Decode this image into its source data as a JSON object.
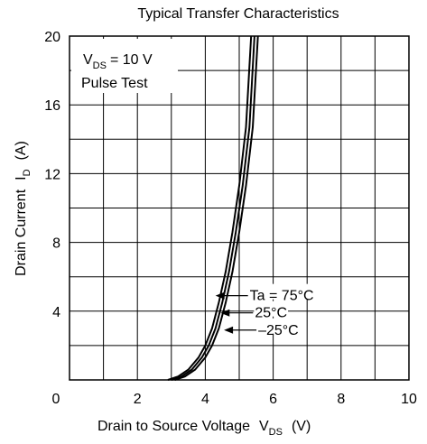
{
  "chart_data": {
    "type": "line",
    "title": "Typical Transfer Characteristics",
    "xlabel_main": "Drain to Source Voltage",
    "xlabel_sym": "V",
    "xlabel_sub": "DS",
    "xlabel_unit": "(V)",
    "ylabel_main": "Drain Current",
    "ylabel_sym": "I",
    "ylabel_sub": "D",
    "ylabel_unit": "(A)",
    "xlim": [
      0,
      10
    ],
    "ylim": [
      0,
      20
    ],
    "x_ticks": [
      "0",
      "2",
      "4",
      "6",
      "8",
      "10"
    ],
    "y_ticks": [
      "4",
      "8",
      "12",
      "16",
      "20"
    ],
    "grid": true,
    "condition": {
      "vds_sym": "V",
      "vds_sub": "DS",
      "vds_value": "= 10 V",
      "pulse": "Pulse Test"
    },
    "series": [
      {
        "name": "Ta = 75°C",
        "x": [
          2.9,
          3.2,
          3.5,
          3.8,
          4.0,
          4.2,
          4.4,
          4.6,
          4.8,
          5.0,
          5.2,
          5.35
        ],
        "y": [
          0,
          0.2,
          0.6,
          1.3,
          2.0,
          3.0,
          4.5,
          6.3,
          8.6,
          11.3,
          14.7,
          20
        ]
      },
      {
        "name": "25°C",
        "x": [
          3.0,
          3.3,
          3.6,
          3.9,
          4.1,
          4.3,
          4.5,
          4.7,
          4.9,
          5.1,
          5.3,
          5.45
        ],
        "y": [
          0,
          0.2,
          0.6,
          1.3,
          2.0,
          3.0,
          4.5,
          6.3,
          8.6,
          11.3,
          14.7,
          20
        ]
      },
      {
        "name": "–25°C",
        "x": [
          3.1,
          3.4,
          3.7,
          4.0,
          4.2,
          4.4,
          4.6,
          4.8,
          5.0,
          5.2,
          5.4,
          5.55
        ],
        "y": [
          0,
          0.2,
          0.6,
          1.3,
          2.0,
          3.0,
          4.5,
          6.3,
          8.6,
          11.3,
          14.7,
          20
        ]
      }
    ],
    "labels": [
      {
        "text": "Ta = 75°C",
        "x": 4.3,
        "y": 4.9
      },
      {
        "text": "25°C",
        "x": 4.45,
        "y": 3.9
      },
      {
        "text": "–25°C",
        "x": 4.55,
        "y": 2.9
      }
    ]
  }
}
